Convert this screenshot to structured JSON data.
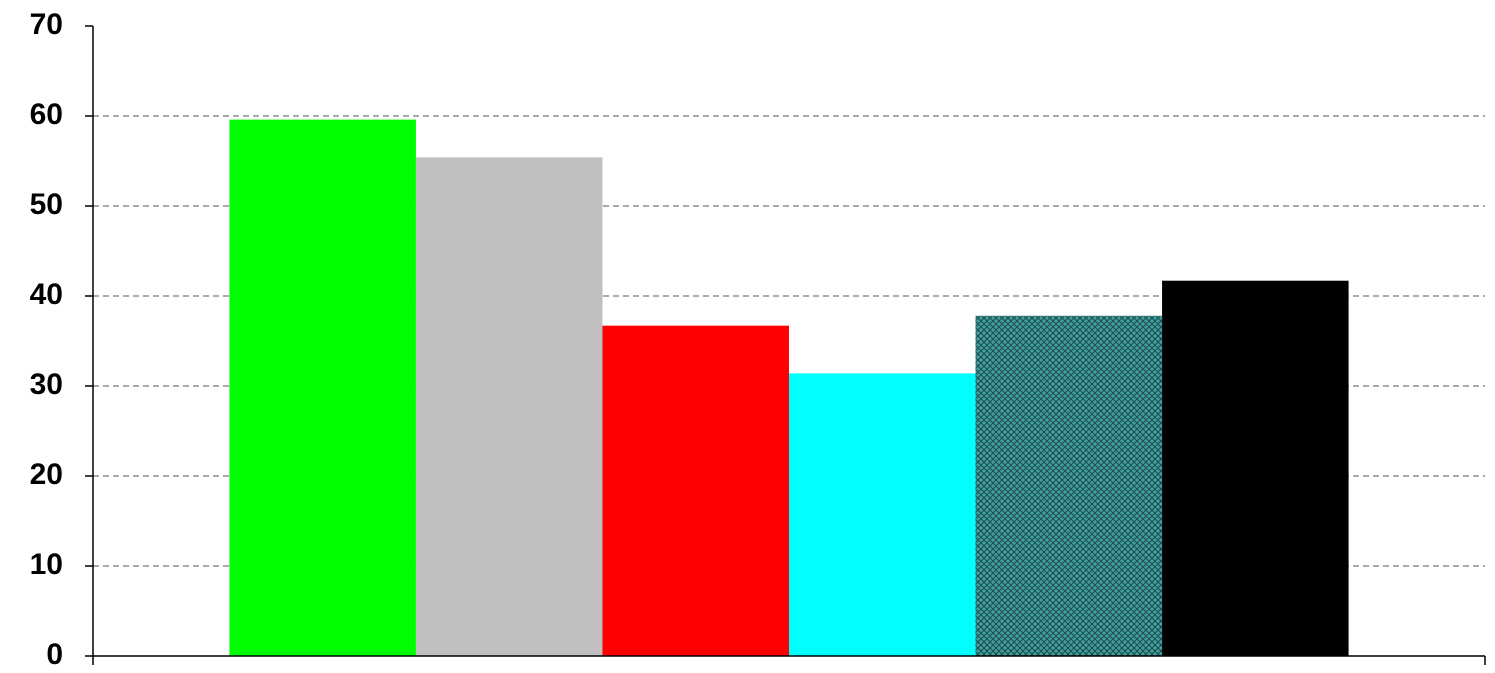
{
  "chart_data": {
    "type": "bar",
    "categories": [
      null
    ],
    "series": [
      {
        "color": "#00ff00",
        "values": [
          59.6
        ]
      },
      {
        "color": "#c0c0c0",
        "values": [
          55.4
        ]
      },
      {
        "color": "#ff0000",
        "values": [
          36.7
        ]
      },
      {
        "color": "#00ffff",
        "values": [
          31.4
        ]
      },
      {
        "color": "#3f9f9f",
        "values": [
          37.8
        ],
        "hatch": true
      },
      {
        "color": "#000000",
        "values": [
          41.7
        ]
      }
    ],
    "ylim": [
      0,
      70
    ],
    "yticks": [
      0,
      10,
      20,
      30,
      40,
      50,
      60,
      70
    ],
    "grid": true
  }
}
